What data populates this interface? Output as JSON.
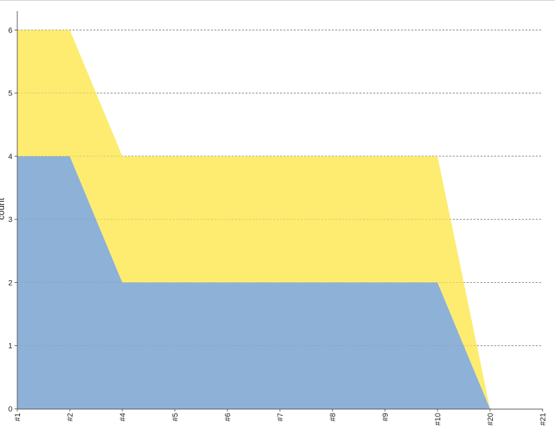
{
  "chart_data": {
    "type": "area",
    "stacked": true,
    "categories": [
      "#1",
      "#2",
      "#4",
      "#5",
      "#6",
      "#7",
      "#8",
      "#9",
      "#10",
      "#20",
      "#21"
    ],
    "series": [
      {
        "color": "#8eb1d8",
        "values": [
          4,
          4,
          2,
          2,
          2,
          2,
          2,
          2,
          2,
          0,
          null
        ]
      },
      {
        "color": "#fdec6f",
        "values": [
          2,
          2,
          2,
          2,
          2,
          2,
          2,
          2,
          2,
          0,
          null
        ]
      }
    ],
    "ylabel": "count",
    "ylim": [
      0,
      6.3
    ],
    "yticks": [
      0,
      1,
      2,
      3,
      4,
      5,
      6
    ],
    "grid": "horizontal-dashed",
    "legend": "none"
  }
}
